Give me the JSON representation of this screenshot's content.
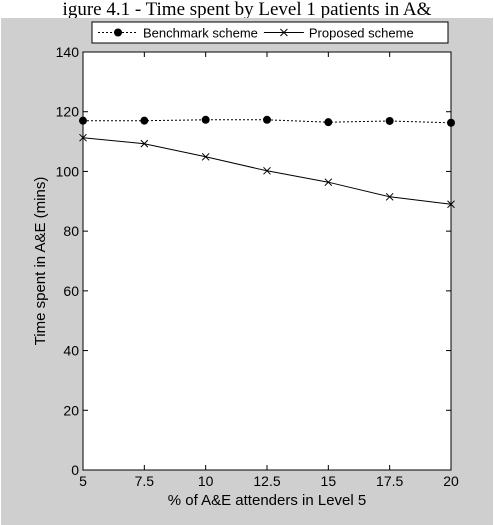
{
  "caption": "igure 4.1 - Time spent by Level 1 patients in A&",
  "colors": {
    "figure_bg": "#cfcfcf",
    "plot_bg": "#ffffff",
    "series_color": "#000000"
  },
  "chart_data": {
    "type": "line",
    "title": "",
    "xlabel": "% of A&E attenders in Level 5",
    "ylabel": "Time spent in A&E (mins)",
    "x": [
      5,
      7.5,
      10,
      12.5,
      15,
      17.5,
      20
    ],
    "x_tick_labels": [
      "5",
      "7.5",
      "10",
      "12.5",
      "15",
      "17.5",
      "20"
    ],
    "y_ticks": [
      0,
      20,
      40,
      60,
      80,
      100,
      120,
      140
    ],
    "xlim": [
      5,
      20
    ],
    "ylim": [
      0,
      140
    ],
    "grid": false,
    "legend_position": "top",
    "series": [
      {
        "name": "Benchmark scheme",
        "line_style": "dotted",
        "marker": "filled-circle",
        "values": [
          117,
          117,
          117.3,
          117.3,
          116.5,
          116.9,
          116.3
        ]
      },
      {
        "name": "Proposed scheme",
        "line_style": "solid",
        "marker": "x",
        "values": [
          111.3,
          109.3,
          104.9,
          100.2,
          96.4,
          91.5,
          89
        ]
      }
    ]
  }
}
